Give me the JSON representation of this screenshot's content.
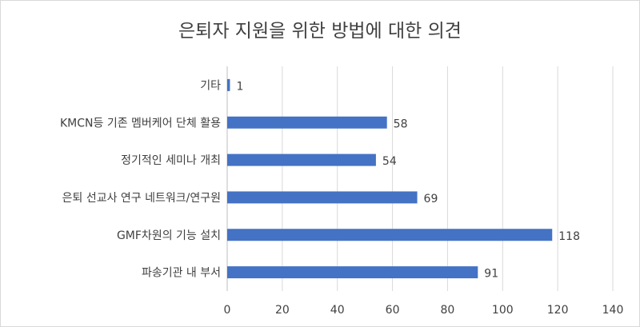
{
  "chart_data": {
    "type": "bar",
    "orientation": "horizontal",
    "title": "은퇴자 지원을 위한 방법에 대한 의견",
    "categories": [
      "기타",
      "KMCN등 기존 멤버케어 단체 활용",
      "정기적인 세미나 개최",
      "은퇴 선교사 연구 네트워크/연구원",
      "GMF차원의 기능 설치",
      "파송기관 내 부서"
    ],
    "values": [
      1,
      58,
      54,
      69,
      118,
      91
    ],
    "data_labels": [
      "1",
      "58",
      "54",
      "69",
      "118",
      "91"
    ],
    "xlim": [
      0,
      140
    ],
    "x_ticks": [
      0,
      20,
      40,
      60,
      80,
      100,
      120,
      140
    ],
    "x_tick_labels": [
      "0",
      "20",
      "40",
      "60",
      "80",
      "100",
      "120",
      "140"
    ],
    "grid": true,
    "legend": "none",
    "xlabel": "",
    "ylabel": "",
    "colors": {
      "bar": "#4472c4",
      "grid": "#d9d9d9",
      "text": "#404040"
    }
  }
}
